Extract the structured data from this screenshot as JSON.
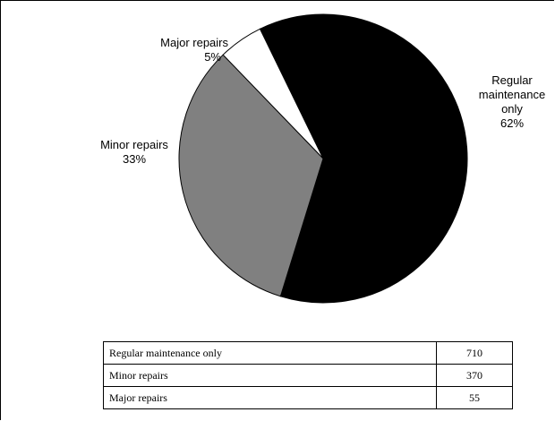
{
  "chart_data": {
    "type": "pie",
    "categories": [
      "Regular maintenance only",
      "Minor repairs",
      "Major repairs"
    ],
    "values": [
      62,
      33,
      5
    ],
    "value_labels": [
      "62%",
      "33%",
      "5%"
    ],
    "colors": [
      "#000000",
      "#808080",
      "#ffffff"
    ]
  },
  "table": {
    "rows": [
      [
        "Regular maintenance only",
        710
      ],
      [
        "Minor repairs",
        370
      ],
      [
        "Major repairs",
        55
      ]
    ]
  }
}
